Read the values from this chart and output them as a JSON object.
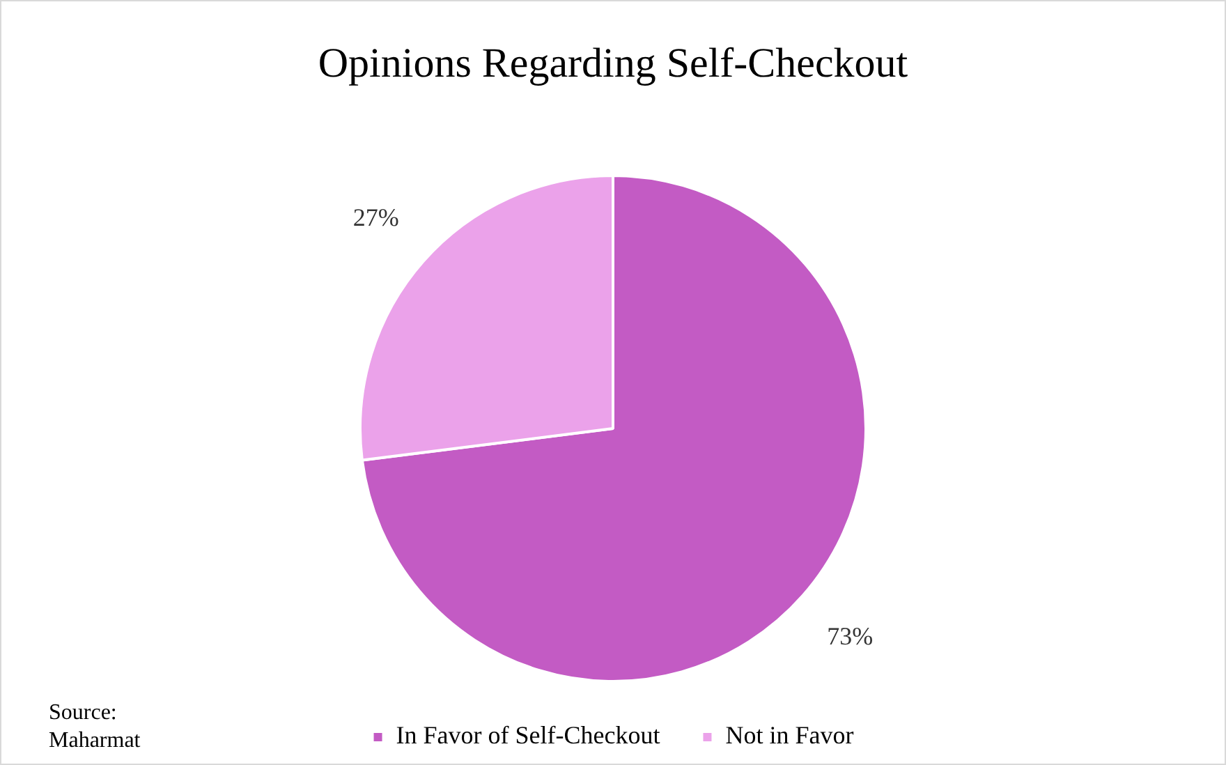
{
  "chart_data": {
    "type": "pie",
    "title": "Opinions Regarding Self-Checkout",
    "categories": [
      "In Favor of Self-Checkout",
      "Not in Favor"
    ],
    "values": [
      73,
      27
    ],
    "colors": [
      "#c35bc4",
      "#eba2ea"
    ],
    "value_labels": [
      "73%",
      "27%"
    ],
    "legend": "bottom",
    "annotations": [
      "Source: Maharmat"
    ]
  }
}
